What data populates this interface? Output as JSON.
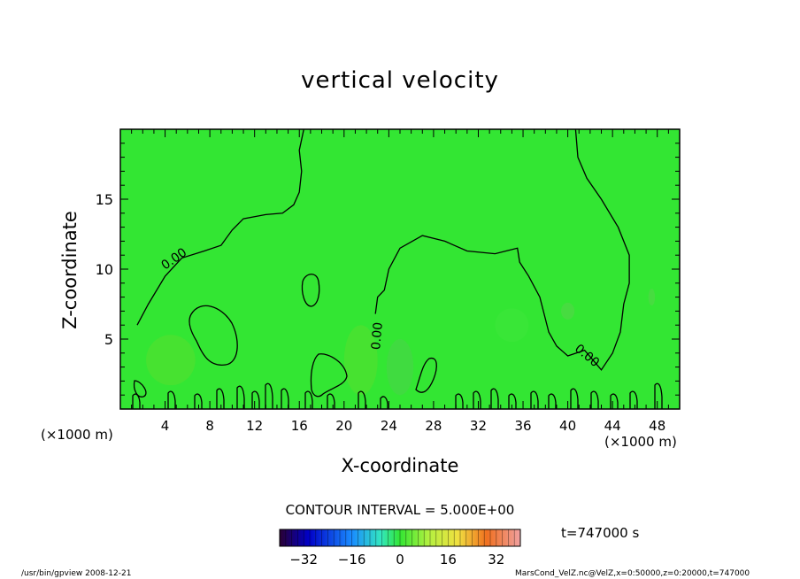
{
  "title": "vertical velocity",
  "contour_interval": "CONTOUR INTERVAL = 5.000E+00",
  "time_label": "t=747000 s",
  "footer": {
    "left": "/usr/bin/gpview   2008-12-21",
    "right": "MarsCond_VelZ.nc@VelZ,x=0:50000,z=0:20000,t=747000"
  },
  "colors": {
    "field": "#33e633",
    "contour": "#000000"
  },
  "chart_data": {
    "type": "heatmap",
    "title": "vertical velocity",
    "xlabel": "X-coordinate",
    "ylabel": "Z-coordinate",
    "x_unit_label": "(×1000 m)",
    "xlim": [
      0,
      50
    ],
    "ylim": [
      0,
      20
    ],
    "x_ticks": [
      4,
      8,
      12,
      16,
      20,
      24,
      28,
      32,
      36,
      40,
      44,
      48
    ],
    "y_ticks": [
      5,
      10,
      15
    ],
    "contour_labels": [
      {
        "text": "0.00",
        "x": 5.0,
        "z": 10.5
      },
      {
        "text": "0.00",
        "x": 23.3,
        "z": 5.2
      },
      {
        "text": "0.00",
        "x": 41.5,
        "z": 3.6
      }
    ],
    "zero_contour_main": [
      [
        1.5,
        6.0
      ],
      [
        2.5,
        7.5
      ],
      [
        4.0,
        9.5
      ],
      [
        5.5,
        10.8
      ],
      [
        7.5,
        11.3
      ],
      [
        9.0,
        11.7
      ],
      [
        10.0,
        12.8
      ],
      [
        11.0,
        13.6
      ],
      [
        13.0,
        13.9
      ],
      [
        14.5,
        14.0
      ],
      [
        15.5,
        14.6
      ],
      [
        16.0,
        15.5
      ],
      [
        16.2,
        17.0
      ],
      [
        16.0,
        18.5
      ],
      [
        16.4,
        20.0
      ]
    ],
    "zero_contour_center": [
      [
        22.8,
        6.8
      ],
      [
        23.0,
        8.0
      ],
      [
        23.6,
        8.5
      ],
      [
        24.0,
        10.0
      ],
      [
        25.0,
        11.5
      ],
      [
        27.0,
        12.4
      ],
      [
        29.0,
        12.0
      ],
      [
        31.0,
        11.3
      ],
      [
        33.5,
        11.1
      ],
      [
        35.5,
        11.5
      ],
      [
        35.7,
        10.5
      ],
      [
        36.5,
        9.5
      ],
      [
        37.5,
        8.0
      ],
      [
        38.3,
        5.5
      ],
      [
        39.0,
        4.5
      ],
      [
        40.0,
        3.8
      ],
      [
        41.5,
        4.2
      ],
      [
        43.0,
        2.8
      ],
      [
        44.0,
        4.0
      ],
      [
        44.7,
        5.5
      ],
      [
        45.0,
        7.5
      ],
      [
        45.5,
        9.0
      ],
      [
        45.5,
        11.0
      ],
      [
        44.5,
        13.0
      ],
      [
        43.0,
        15.0
      ],
      [
        41.7,
        16.5
      ],
      [
        40.9,
        18.0
      ],
      [
        40.7,
        20.0
      ]
    ],
    "colorbar": {
      "ticks": [
        -32,
        -16,
        0,
        16,
        32
      ],
      "range": [
        -40,
        40
      ],
      "colormap": "rainbow"
    }
  }
}
